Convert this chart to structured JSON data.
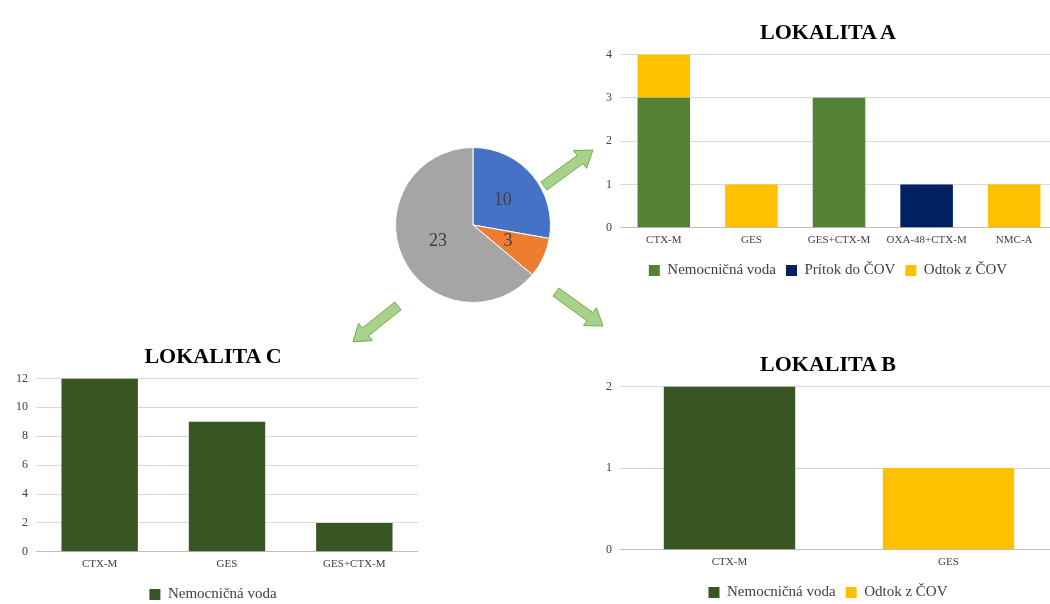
{
  "chart_data": [
    {
      "type": "bar",
      "title": "LOKALITA A",
      "categories": [
        "CTX-M",
        "GES",
        "GES+CTX-M",
        "OXA-48+CTX-M",
        "NMC-A"
      ],
      "stacked": true,
      "series": [
        {
          "name": "Nemocničná voda",
          "color": "#548235",
          "values": [
            3,
            null,
            3,
            null,
            null
          ]
        },
        {
          "name": "Prítok do ČOV",
          "color": "#002060",
          "values": [
            null,
            null,
            null,
            1,
            null
          ]
        },
        {
          "name": "Odtok z ČOV",
          "color": "#ffc000",
          "values": [
            1,
            1,
            null,
            null,
            1
          ]
        }
      ],
      "ylim": [
        0,
        4
      ],
      "yticks": [
        0,
        1,
        2,
        3,
        4
      ],
      "grid": "y",
      "legend": "bottom"
    },
    {
      "type": "pie",
      "categories": [
        null,
        null,
        null
      ],
      "values": [
        10,
        3,
        23
      ],
      "colors": [
        "#4472c4",
        "#ed7d31",
        "#a5a5a5"
      ],
      "data_labels": true
    },
    {
      "type": "bar",
      "title": "LOKALITA C",
      "categories": [
        "CTX-M",
        "GES",
        "GES+CTX-M"
      ],
      "series": [
        {
          "name": "Nemocničná voda",
          "color": "#375623",
          "values": [
            12,
            9,
            2
          ]
        }
      ],
      "ylim": [
        0,
        12
      ],
      "yticks": [
        0,
        2,
        4,
        6,
        8,
        10,
        12
      ],
      "grid": "y",
      "legend": "bottom"
    },
    {
      "type": "bar",
      "title": "LOKALITA B",
      "categories": [
        "CTX-M",
        "GES"
      ],
      "stacked": true,
      "series": [
        {
          "name": "Nemocničná voda",
          "color": "#375623",
          "values": [
            2,
            null
          ]
        },
        {
          "name": "Odtok z ČOV",
          "color": "#ffc000",
          "values": [
            null,
            1
          ]
        }
      ],
      "ylim": [
        0,
        2
      ],
      "yticks": [
        0,
        1,
        2
      ],
      "grid": "y",
      "legend": "bottom"
    }
  ]
}
